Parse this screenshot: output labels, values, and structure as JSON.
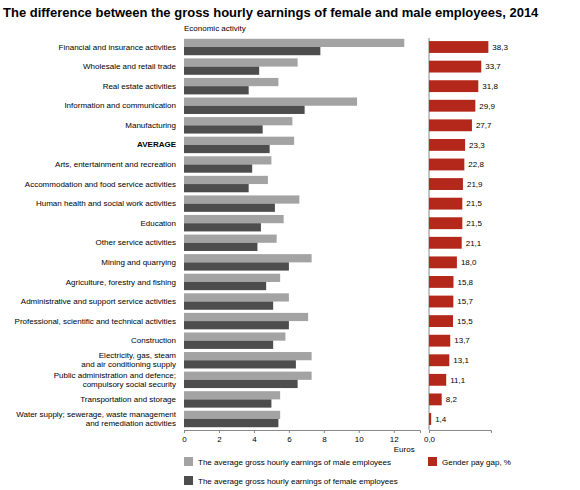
{
  "chart_data": [
    {
      "type": "bar",
      "orientation": "horizontal",
      "title": "The difference between the gross hourly earnings of female and male employees, 2014",
      "ylabel": "Economic activity",
      "xlabel": "Euros",
      "categories": [
        "Financial and insurance activities",
        "Wholesale and retail trade",
        "Real estate activities",
        "Information and communication",
        "Manufacturing",
        "AVERAGE",
        "Arts, entertainment and recreation",
        "Accommodation and food service activities",
        "Human health and social work activities",
        "Education",
        "Other service activities",
        "Mining and quarrying",
        "Agriculture, forestry and fishing",
        "Administrative and support service activities",
        "Professional, scientific and technical activities",
        "Construction",
        "Electricity, gas, steam\nand air conditioning supply",
        "Public administration and defence;\ncompulsory social security",
        "Transportation and storage",
        "Water supply; sewerage, waste management\nand remediation activities"
      ],
      "series": [
        {
          "name": "The average gross hourly earnings of male employees",
          "color": "#a3a3a3",
          "values": [
            12.6,
            6.5,
            5.4,
            9.9,
            6.2,
            6.3,
            5.0,
            4.8,
            6.6,
            5.7,
            5.3,
            7.3,
            5.5,
            6.0,
            7.1,
            5.8,
            7.3,
            7.3,
            5.5,
            5.5
          ]
        },
        {
          "name": "The average gross hourly earnings of female employees",
          "color": "#4d4d4d",
          "values": [
            7.8,
            4.3,
            3.7,
            6.9,
            4.5,
            4.9,
            3.9,
            3.7,
            5.2,
            4.4,
            4.2,
            6.0,
            4.7,
            5.1,
            6.0,
            5.1,
            6.4,
            6.5,
            5.0,
            5.4
          ]
        }
      ],
      "xlim": [
        0,
        13.5
      ],
      "xticks": [
        0,
        2,
        4,
        6,
        8,
        10,
        12
      ],
      "grid": false
    },
    {
      "type": "bar",
      "orientation": "horizontal",
      "data_labels": true,
      "series": [
        {
          "name": "Gender pay gap, %",
          "color": "#b3281b",
          "values": [
            38.3,
            33.7,
            31.8,
            29.9,
            27.7,
            23.3,
            22.8,
            21.9,
            21.5,
            21.5,
            21.1,
            18.0,
            15.8,
            15.7,
            15.5,
            13.7,
            13.1,
            11.1,
            8.2,
            1.4
          ],
          "value_labels": [
            "38,3",
            "33,7",
            "31,8",
            "29,9",
            "27,7",
            "23,3",
            "22,8",
            "21,9",
            "21,5",
            "21,5",
            "21,1",
            "18,0",
            "15,8",
            "15,7",
            "15,5",
            "13,7",
            "13,1",
            "11,1",
            "8,2",
            "1,4"
          ]
        }
      ],
      "xlim": [
        0,
        40
      ],
      "xticks": [
        {
          "value": 0,
          "label": "0,0"
        }
      ],
      "grid": false
    }
  ]
}
